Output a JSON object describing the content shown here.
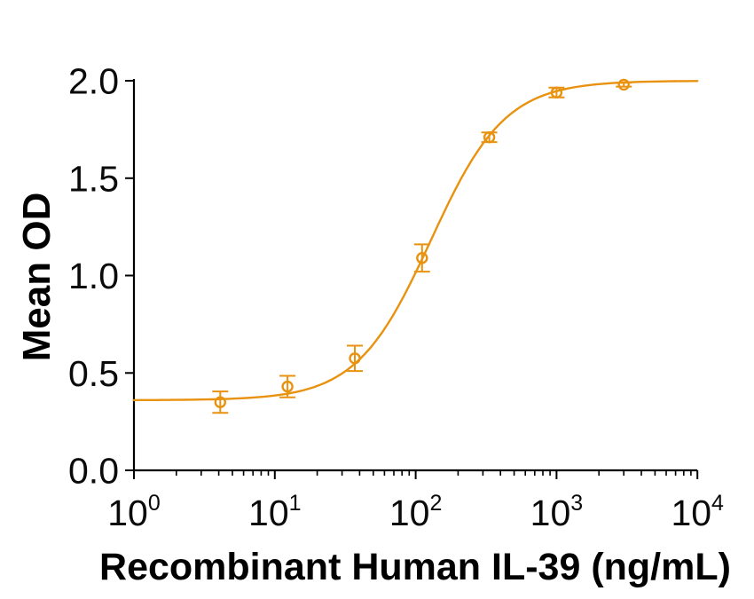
{
  "figure": {
    "background": "#ffffff",
    "description": "Dose-response ELISA curve, single orange series with open-circle markers and error bars"
  },
  "chart_data": {
    "type": "scatter",
    "subtype": "dose-response-log-x-with-4pl-fit",
    "title": "",
    "xlabel": "Recombinant Human IL-39 (ng/mL)",
    "ylabel": "Mean OD",
    "x_scale": "log10",
    "xlim": [
      1,
      10000
    ],
    "ylim": [
      0,
      2.0
    ],
    "grid": false,
    "legend": null,
    "x_tick_base": "10",
    "x_tick_exponents": [
      0,
      1,
      2,
      3,
      4
    ],
    "x_minor_ticks_per_decade": [
      2,
      3,
      4,
      5,
      6,
      7,
      8,
      9
    ],
    "y_ticks": [
      {
        "value": 0.0,
        "label": "0.0"
      },
      {
        "value": 0.5,
        "label": "0.5"
      },
      {
        "value": 1.0,
        "label": "1.0"
      },
      {
        "value": 1.5,
        "label": "1.5"
      },
      {
        "value": 2.0,
        "label": "2.0"
      }
    ],
    "series": [
      {
        "name": "Recombinant Human IL-39",
        "marker": "open-circle",
        "color": "#E8920F",
        "points": [
          {
            "x": 4.1,
            "y": 0.35,
            "err": 0.055
          },
          {
            "x": 12.3,
            "y": 0.43,
            "err": 0.055
          },
          {
            "x": 37,
            "y": 0.575,
            "err": 0.065
          },
          {
            "x": 111,
            "y": 1.09,
            "err": 0.07
          },
          {
            "x": 333,
            "y": 1.71,
            "err": 0.025
          },
          {
            "x": 1000,
            "y": 1.94,
            "err": 0.025
          },
          {
            "x": 3000,
            "y": 1.98,
            "err": 0.01
          }
        ]
      }
    ],
    "fit_curve": {
      "model": "4PL",
      "bottom": 0.36,
      "top": 2.0,
      "ec50": 128,
      "hill": 1.65,
      "color": "#E8920F"
    },
    "colors": {
      "curve": "#E8920F",
      "axis": "#000000",
      "text": "#000000"
    }
  }
}
